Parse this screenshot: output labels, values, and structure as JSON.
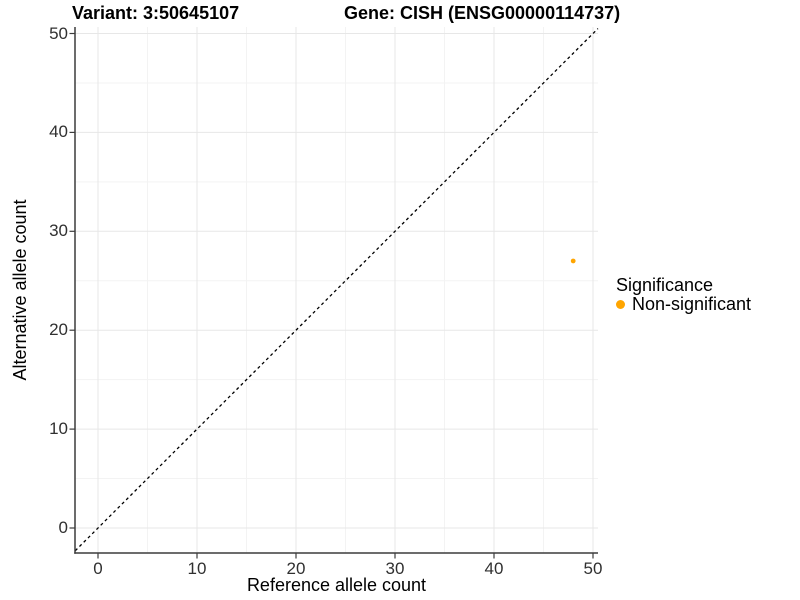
{
  "figure": {
    "title_left": "Variant: 3:50645107",
    "title_right": "Gene: CISH (ENSG00000114737)"
  },
  "chart_data": {
    "type": "scatter",
    "title": "Variant: 3:50645107   Gene: CISH (ENSG00000114737)",
    "xlabel": "Reference allele count",
    "ylabel": "Alternative allele count",
    "xlim": [
      -2.3,
      50.5
    ],
    "ylim": [
      -2.5,
      50.7
    ],
    "x_ticks": [
      0,
      10,
      20,
      30,
      40,
      50
    ],
    "y_ticks": [
      0,
      10,
      20,
      30,
      40,
      50
    ],
    "grid": {
      "major_color": "#E7E7E7",
      "minor_color": "#F3F3F3",
      "background": "#FFFFFF",
      "minor": "midpoints"
    },
    "axis_color": "#3C3C3C",
    "identity_line": {
      "show": true,
      "slope": 1,
      "intercept": 0,
      "style": "dashed",
      "color": "#000000"
    },
    "series": [
      {
        "name": "Non-significant",
        "color": "#FFA500",
        "point_radius": 2.4,
        "points": [
          {
            "x": 48,
            "y": 27
          }
        ]
      }
    ],
    "legend": {
      "title": "Significance",
      "position": "right",
      "items": [
        {
          "label": "Non-significant",
          "color": "#FFA500"
        }
      ]
    }
  }
}
